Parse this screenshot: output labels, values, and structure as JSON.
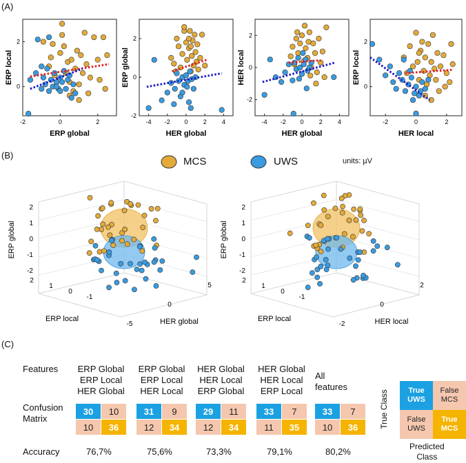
{
  "panels": {
    "a": "(A)",
    "b": "(B)",
    "c": "(C)"
  },
  "colors": {
    "mcs": "#E3AA3A",
    "uws": "#3A9BE0",
    "mcs_line": "#E02020",
    "uws_line": "#1A1AC8"
  },
  "legend": {
    "mcs": "MCS",
    "uws": "UWS",
    "units": "units: µV"
  },
  "chart_data": [
    {
      "type": "scatter",
      "title": "",
      "xlabel": "ERP global",
      "ylabel": "ERP local",
      "xlim": [
        -2,
        3
      ],
      "ylim": [
        -1.3,
        3
      ],
      "xticks": [
        "-2",
        "0",
        "2"
      ],
      "yticks": [
        "0",
        "2"
      ],
      "series": [
        {
          "name": "MCS",
          "points": [
            [
              -0.6,
              0.9
            ],
            [
              -0.5,
              1.3
            ],
            [
              -0.4,
              1.9
            ],
            [
              -0.3,
              0.5
            ],
            [
              -0.2,
              0.2
            ],
            [
              0,
              1.5
            ],
            [
              0.1,
              2.3
            ],
            [
              0.2,
              1.8
            ],
            [
              0.3,
              0.6
            ],
            [
              0.4,
              1.1
            ],
            [
              0.5,
              0.2
            ],
            [
              0.6,
              1.2
            ],
            [
              0.7,
              -0.2
            ],
            [
              0.8,
              0.8
            ],
            [
              0.9,
              1.6
            ],
            [
              1.0,
              0.1
            ],
            [
              1.1,
              1.4
            ],
            [
              1.2,
              0.6
            ],
            [
              1.3,
              2.4
            ],
            [
              1.4,
              1.0
            ],
            [
              1.5,
              -0.3
            ],
            [
              1.6,
              0.4
            ],
            [
              1.8,
              2.2
            ],
            [
              2.0,
              1.2
            ],
            [
              2.1,
              0.3
            ],
            [
              2.3,
              2.2
            ],
            [
              2.4,
              -0.1
            ],
            [
              2.5,
              1.4
            ],
            [
              0.1,
              2.8
            ],
            [
              -0.9,
              2.0
            ],
            [
              1.0,
              -0.6
            ],
            [
              0.5,
              -0.4
            ]
          ],
          "trend": [
            [
              -1.6,
              0.45
            ],
            [
              2.6,
              1.0
            ]
          ]
        },
        {
          "name": "UWS",
          "points": [
            [
              -1.7,
              -1.3
            ],
            [
              -1.6,
              0.3
            ],
            [
              -1.3,
              0.6
            ],
            [
              -1.2,
              2.1
            ],
            [
              -1.0,
              -0.1
            ],
            [
              -0.9,
              0.4
            ],
            [
              -0.8,
              0.1
            ],
            [
              -0.7,
              0.8
            ],
            [
              -0.6,
              -0.2
            ],
            [
              -0.5,
              0.3
            ],
            [
              -0.4,
              0.0
            ],
            [
              -0.3,
              0.6
            ],
            [
              -0.2,
              0.2
            ],
            [
              -0.1,
              -0.1
            ],
            [
              0,
              0.4
            ],
            [
              0.1,
              0.2
            ],
            [
              0.2,
              0.7
            ],
            [
              0.3,
              -0.1
            ],
            [
              0.4,
              0.3
            ],
            [
              0.5,
              0.5
            ],
            [
              0.6,
              -0.5
            ],
            [
              0.7,
              0.1
            ],
            [
              0.8,
              -0.3
            ],
            [
              -0.6,
              2.2
            ],
            [
              -0.2,
              0.0
            ],
            [
              0.0,
              -0.2
            ],
            [
              -1.0,
              0.9
            ]
          ],
          "trend": [
            [
              -1.6,
              -0.1
            ],
            [
              1.2,
              0.8
            ]
          ]
        }
      ]
    },
    {
      "type": "scatter",
      "title": "",
      "xlabel": "HER global",
      "ylabel": "ERP global",
      "xlim": [
        -5,
        5
      ],
      "ylim": [
        -2,
        3
      ],
      "xticks": [
        "-4",
        "-2",
        "0",
        "2",
        "4"
      ],
      "yticks": [
        "-2",
        "0",
        "2"
      ],
      "series": [
        {
          "name": "MCS",
          "points": [
            [
              -1.6,
              1.0
            ],
            [
              -1.3,
              0.7
            ],
            [
              -1.0,
              2.0
            ],
            [
              -0.8,
              1.6
            ],
            [
              -0.6,
              0.5
            ],
            [
              -0.4,
              1.2
            ],
            [
              -0.2,
              2.4
            ],
            [
              0,
              1.8
            ],
            [
              0.1,
              0.9
            ],
            [
              0.3,
              1.5
            ],
            [
              0.4,
              2.4
            ],
            [
              0.5,
              0.3
            ],
            [
              0.6,
              1.1
            ],
            [
              0.7,
              1.9
            ],
            [
              0.8,
              0.6
            ],
            [
              0.9,
              2.2
            ],
            [
              1.0,
              1.3
            ],
            [
              1.1,
              0.8
            ],
            [
              1.2,
              1.7
            ],
            [
              1.3,
              0.4
            ],
            [
              1.5,
              1.0
            ],
            [
              1.7,
              2.2
            ],
            [
              2.0,
              0.6
            ],
            [
              -0.2,
              2.6
            ],
            [
              0.3,
              2.0
            ],
            [
              -1.1,
              0.3
            ],
            [
              0.5,
              1.6
            ]
          ],
          "trend": [
            [
              -1.5,
              0.3
            ],
            [
              2.2,
              0.9
            ]
          ]
        },
        {
          "name": "UWS",
          "points": [
            [
              -4.0,
              -1.6
            ],
            [
              -3.4,
              0.9
            ],
            [
              -2.6,
              -1.2
            ],
            [
              -2.0,
              -0.8
            ],
            [
              -1.6,
              -0.3
            ],
            [
              -1.2,
              -0.6
            ],
            [
              -1.0,
              0.2
            ],
            [
              -0.8,
              -0.2
            ],
            [
              -0.6,
              -1.0
            ],
            [
              -0.4,
              0.0
            ],
            [
              -0.2,
              -0.4
            ],
            [
              0,
              0.1
            ],
            [
              0.2,
              -0.2
            ],
            [
              0.4,
              0.3
            ],
            [
              0.6,
              -0.1
            ],
            [
              0.8,
              -0.6
            ],
            [
              1.0,
              0.0
            ],
            [
              0.5,
              -1.6
            ],
            [
              0.3,
              -1.3
            ],
            [
              3.8,
              -1.7
            ],
            [
              -1.3,
              -1.4
            ],
            [
              -0.4,
              -0.8
            ],
            [
              0.1,
              -0.5
            ]
          ],
          "trend": [
            [
              -4.2,
              -0.5
            ],
            [
              3.8,
              0.2
            ]
          ]
        }
      ]
    },
    {
      "type": "scatter",
      "title": "",
      "xlabel": "HER global",
      "ylabel": "HER local",
      "xlim": [
        -5,
        5
      ],
      "ylim": [
        -3,
        3
      ],
      "xticks": [
        "-4",
        "-2",
        "0",
        "2",
        "4"
      ],
      "yticks": [
        "-2",
        "0",
        "2"
      ],
      "series": [
        {
          "name": "MCS",
          "points": [
            [
              -1.2,
              0.7
            ],
            [
              -1.0,
              1.3
            ],
            [
              -0.8,
              0.2
            ],
            [
              -0.6,
              1.8
            ],
            [
              -0.4,
              0.9
            ],
            [
              -0.2,
              1.5
            ],
            [
              0,
              2.0
            ],
            [
              0.2,
              0.4
            ],
            [
              0.4,
              1.2
            ],
            [
              0.6,
              0.6
            ],
            [
              0.8,
              2.2
            ],
            [
              1.0,
              0.0
            ],
            [
              1.2,
              1.5
            ],
            [
              1.4,
              0.9
            ],
            [
              1.6,
              -0.3
            ],
            [
              1.8,
              1.8
            ],
            [
              2.0,
              0.3
            ],
            [
              2.2,
              1.0
            ],
            [
              2.4,
              -0.6
            ],
            [
              2.6,
              2.5
            ],
            [
              0.3,
              2.6
            ],
            [
              -0.5,
              2.2
            ],
            [
              0.9,
              -0.5
            ],
            [
              1.5,
              -1.0
            ],
            [
              0.7,
              1.6
            ]
          ],
          "trend": [
            [
              -1.4,
              0.3
            ],
            [
              2.0,
              0.45
            ]
          ]
        },
        {
          "name": "UWS",
          "points": [
            [
              -4.0,
              -1.7
            ],
            [
              -3.4,
              0.5
            ],
            [
              -2.8,
              -0.6
            ],
            [
              -2.2,
              -0.9
            ],
            [
              -1.8,
              -0.3
            ],
            [
              -1.4,
              0.2
            ],
            [
              -1.0,
              -0.8
            ],
            [
              -0.8,
              0.3
            ],
            [
              -0.6,
              -0.1
            ],
            [
              -0.4,
              0.6
            ],
            [
              -0.2,
              0.0
            ],
            [
              0,
              -0.4
            ],
            [
              0.2,
              0.2
            ],
            [
              0.4,
              0.5
            ],
            [
              0.6,
              -0.2
            ],
            [
              0.8,
              0.0
            ],
            [
              1.0,
              0.3
            ],
            [
              0.5,
              -1.3
            ],
            [
              -0.9,
              -2.9
            ],
            [
              3.4,
              -0.6
            ],
            [
              -0.3,
              -0.7
            ],
            [
              0.1,
              0.9
            ]
          ],
          "trend": [
            [
              -4.2,
              -0.9
            ],
            [
              3.5,
              0.3
            ]
          ]
        }
      ]
    },
    {
      "type": "scatter",
      "title": "",
      "xlabel": "HER local",
      "ylabel": "ERP local",
      "xlim": [
        -3,
        3
      ],
      "ylim": [
        -1.3,
        3
      ],
      "xticks": [
        "-2",
        "0",
        "2"
      ],
      "yticks": [
        "0",
        "2"
      ],
      "series": [
        {
          "name": "MCS",
          "points": [
            [
              -0.8,
              1.3
            ],
            [
              -0.6,
              0.6
            ],
            [
              -0.4,
              1.8
            ],
            [
              -0.2,
              0.9
            ],
            [
              0,
              2.4
            ],
            [
              0.1,
              1.1
            ],
            [
              0.2,
              0.3
            ],
            [
              0.3,
              1.6
            ],
            [
              0.4,
              2.0
            ],
            [
              0.5,
              0.7
            ],
            [
              0.6,
              1.3
            ],
            [
              0.7,
              0.1
            ],
            [
              0.8,
              1.9
            ],
            [
              0.9,
              0.5
            ],
            [
              1.0,
              1.1
            ],
            [
              1.1,
              2.3
            ],
            [
              1.2,
              0.8
            ],
            [
              1.3,
              0.3
            ],
            [
              1.4,
              1.5
            ],
            [
              1.5,
              -0.2
            ],
            [
              1.6,
              0.9
            ],
            [
              1.8,
              1.4
            ],
            [
              2.0,
              0.6
            ],
            [
              2.2,
              0.2
            ],
            [
              2.3,
              1.9
            ],
            [
              2.4,
              1.0
            ],
            [
              0.6,
              -0.4
            ],
            [
              0.2,
              1.5
            ],
            [
              1.0,
              -0.6
            ],
            [
              1.9,
              0.0
            ]
          ],
          "trend": [
            [
              -0.7,
              0.6
            ],
            [
              2.4,
              0.75
            ]
          ]
        },
        {
          "name": "UWS",
          "points": [
            [
              -3.0,
              1.9
            ],
            [
              -2.4,
              1.2
            ],
            [
              -2.0,
              0.5
            ],
            [
              -1.7,
              0.9
            ],
            [
              -1.5,
              0.2
            ],
            [
              -1.3,
              -0.1
            ],
            [
              -1.1,
              0.6
            ],
            [
              -0.9,
              0.3
            ],
            [
              -0.7,
              -0.2
            ],
            [
              -0.5,
              0.1
            ],
            [
              -0.3,
              0.4
            ],
            [
              -0.1,
              -0.3
            ],
            [
              0,
              0.0
            ],
            [
              0.2,
              -0.4
            ],
            [
              0.4,
              0.2
            ],
            [
              0.6,
              -0.1
            ],
            [
              0.8,
              0.3
            ],
            [
              -0.2,
              -0.6
            ],
            [
              0.0,
              -1.2
            ],
            [
              -0.8,
              1.2
            ],
            [
              -0.4,
              0.7
            ],
            [
              0.3,
              -0.2
            ]
          ],
          "trend": [
            [
              -3.0,
              1.3
            ],
            [
              0.9,
              -0.6
            ]
          ]
        }
      ]
    },
    {
      "type": "scatter3d",
      "xlabel": "HER global",
      "ylabel": "ERP local",
      "zlabel": "ERP global",
      "zticks": [
        "2",
        "1",
        "0",
        "-1",
        "-2"
      ],
      "xticks": [
        "-5",
        "0",
        "5"
      ],
      "yticks": [
        "2",
        "1",
        "0",
        "-1"
      ]
    },
    {
      "type": "scatter3d",
      "xlabel": "HER local",
      "ylabel": "ERP local",
      "zlabel": "ERP global",
      "zticks": [
        "2",
        "1",
        "0",
        "-1",
        "-2"
      ],
      "xticks": [
        "-2",
        "0",
        "2"
      ],
      "yticks": [
        "2",
        "1",
        "0",
        "-1"
      ]
    }
  ],
  "confusion": {
    "row_features": "Features",
    "row_matrix": "Confusion\nMatrix",
    "row_accuracy": "Accuracy",
    "models": [
      {
        "features": "ERP Global\nERP Local\nHER Global",
        "tp_uws": "30",
        "fp_mcs": "10",
        "fn_uws": "10",
        "tp_mcs": "36",
        "accuracy": "76,7%"
      },
      {
        "features": "ERP Global\nERP Local\nHER Local",
        "tp_uws": "31",
        "fp_mcs": "9",
        "fn_uws": "12",
        "tp_mcs": "34",
        "accuracy": "75,6%"
      },
      {
        "features": "HER Global\nHER Local\nERP Global",
        "tp_uws": "29",
        "fp_mcs": "11",
        "fn_uws": "12",
        "tp_mcs": "34",
        "accuracy": "73,3%"
      },
      {
        "features": "HER Global\nHER Local\nERP Local",
        "tp_uws": "33",
        "fp_mcs": "7",
        "fn_uws": "11",
        "tp_mcs": "35",
        "accuracy": "79,1%"
      },
      {
        "features": "All\nfeatures",
        "tp_uws": "33",
        "fp_mcs": "7",
        "fn_uws": "10",
        "tp_mcs": "36",
        "accuracy": "80,2%"
      }
    ],
    "key": {
      "true_uws": "True\nUWS",
      "false_mcs": "False\nMCS",
      "false_uws": "False\nUWS",
      "true_mcs": "True\nMCS",
      "true_class": "True Class",
      "predicted_class": "Predicted\nClass"
    }
  }
}
